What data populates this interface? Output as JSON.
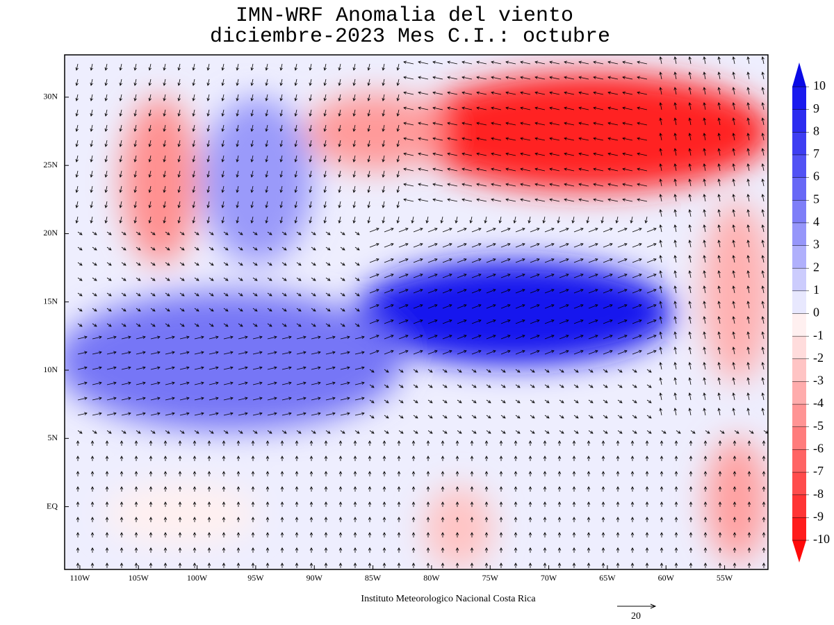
{
  "chart_data": {
    "type": "map",
    "title": "IMN-WRF Anomalia del viento",
    "subtitle": "diciembre-2023 Mes C.I.: octubre",
    "xlim": [
      -111.3,
      -51.3
    ],
    "ylim": [
      -4.6,
      33.1
    ],
    "xticks": [
      {
        "value": -110,
        "label": "110W"
      },
      {
        "value": -105,
        "label": "105W"
      },
      {
        "value": -100,
        "label": "100W"
      },
      {
        "value": -95,
        "label": "95W"
      },
      {
        "value": -90,
        "label": "90W"
      },
      {
        "value": -85,
        "label": "85W"
      },
      {
        "value": -80,
        "label": "80W"
      },
      {
        "value": -75,
        "label": "75W"
      },
      {
        "value": -70,
        "label": "70W"
      },
      {
        "value": -65,
        "label": "65W"
      },
      {
        "value": -60,
        "label": "60W"
      },
      {
        "value": -55,
        "label": "55W"
      }
    ],
    "yticks": [
      {
        "value": 30,
        "label": "30N"
      },
      {
        "value": 25,
        "label": "25N"
      },
      {
        "value": 20,
        "label": "20N"
      },
      {
        "value": 15,
        "label": "15N"
      },
      {
        "value": 10,
        "label": "10N"
      },
      {
        "value": 5,
        "label": "5N"
      },
      {
        "value": 0,
        "label": "EQ"
      }
    ],
    "colorbar": {
      "levels": [
        10,
        9,
        8,
        7,
        6,
        5,
        4,
        3,
        2,
        1,
        0,
        -1,
        -2,
        -3,
        -4,
        -5,
        -6,
        -7,
        -8,
        -9,
        -10
      ],
      "colors": [
        "#0a0ae6",
        "#1a1aee",
        "#2c2cf0",
        "#3e3ef2",
        "#5252f4",
        "#6868f6",
        "#7e7ef8",
        "#9696fa",
        "#b0b0fc",
        "#ccccfd",
        "#e8e8fe",
        "#fff0f0",
        "#ffdcdc",
        "#ffc4c4",
        "#ffacac",
        "#ff9494",
        "#ff7c7c",
        "#ff6464",
        "#ff4c4c",
        "#ff3434",
        "#ff1c1c",
        "#ff0a0a"
      ]
    },
    "footer": "Instituto Meteorologico Nacional Costa Rica",
    "reference_vector": 20
  }
}
